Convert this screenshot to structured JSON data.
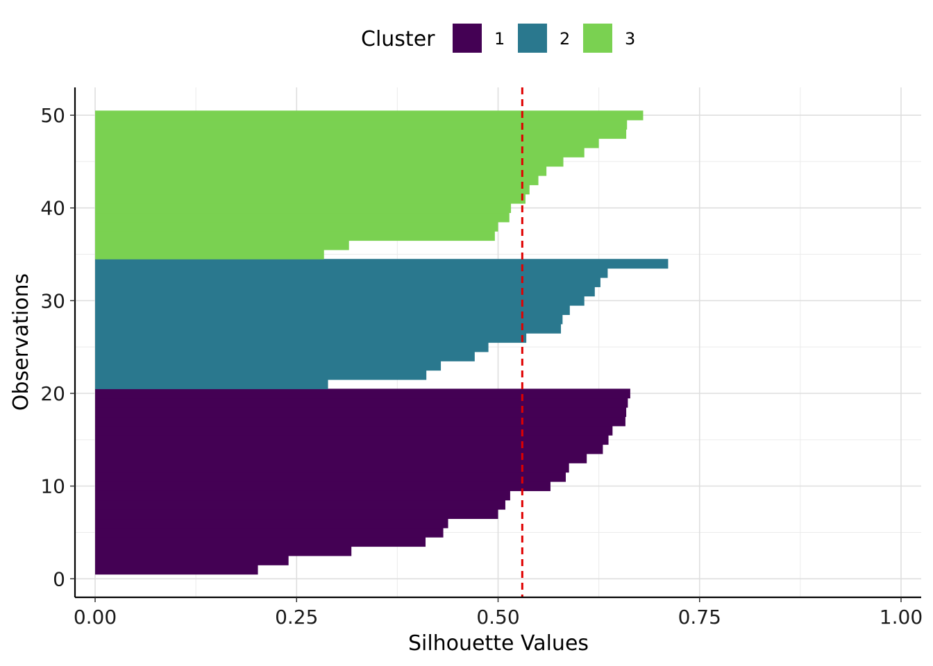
{
  "legend": {
    "title": "Cluster",
    "entries": [
      {
        "label": "1",
        "color": "#440154"
      },
      {
        "label": "2",
        "color": "#2a788e"
      },
      {
        "label": "3",
        "color": "#7ad151"
      }
    ]
  },
  "chart_data": {
    "type": "bar",
    "orientation": "horizontal",
    "xlabel": "Silhouette Values",
    "ylabel": "Observations",
    "xlim": [
      -0.025,
      1.025
    ],
    "ylim": [
      -2,
      53
    ],
    "x_ticks": [
      {
        "value": 0,
        "label": "0.00"
      },
      {
        "value": 0.25,
        "label": "0.25"
      },
      {
        "value": 0.5,
        "label": "0.50"
      },
      {
        "value": 0.75,
        "label": "0.75"
      },
      {
        "value": 1.0,
        "label": "1.00"
      }
    ],
    "y_ticks": [
      {
        "value": 0,
        "label": "0"
      },
      {
        "value": 10,
        "label": "10"
      },
      {
        "value": 20,
        "label": "20"
      },
      {
        "value": 30,
        "label": "30"
      },
      {
        "value": 40,
        "label": "40"
      },
      {
        "value": 50,
        "label": "50"
      }
    ],
    "grid": true,
    "legend_position": "top",
    "reference_line": {
      "x": 0.53,
      "color": "#e00000",
      "style": "dashed"
    },
    "series": [
      {
        "name": "1",
        "color": "#440154",
        "observations": [
          1,
          2,
          3,
          4,
          5,
          6,
          7,
          8,
          9,
          10,
          11,
          12,
          13,
          14,
          15,
          16,
          17,
          18,
          19,
          20
        ],
        "values": [
          0.202,
          0.24,
          0.318,
          0.41,
          0.432,
          0.438,
          0.5,
          0.509,
          0.515,
          0.565,
          0.584,
          0.588,
          0.61,
          0.63,
          0.637,
          0.642,
          0.658,
          0.659,
          0.661,
          0.664
        ]
      },
      {
        "name": "2",
        "color": "#2a788e",
        "observations": [
          21,
          22,
          23,
          24,
          25,
          26,
          27,
          28,
          29,
          30,
          31,
          32,
          33,
          34
        ],
        "values": [
          0.289,
          0.411,
          0.429,
          0.471,
          0.488,
          0.535,
          0.578,
          0.58,
          0.589,
          0.607,
          0.62,
          0.627,
          0.636,
          0.711
        ]
      },
      {
        "name": "3",
        "color": "#7ad151",
        "observations": [
          35,
          36,
          37,
          38,
          39,
          40,
          41,
          42,
          43,
          44,
          45,
          46,
          47,
          48,
          49,
          50
        ],
        "values": [
          0.284,
          0.315,
          0.496,
          0.5,
          0.514,
          0.516,
          0.534,
          0.539,
          0.55,
          0.56,
          0.581,
          0.607,
          0.625,
          0.659,
          0.66,
          0.68
        ]
      }
    ]
  }
}
